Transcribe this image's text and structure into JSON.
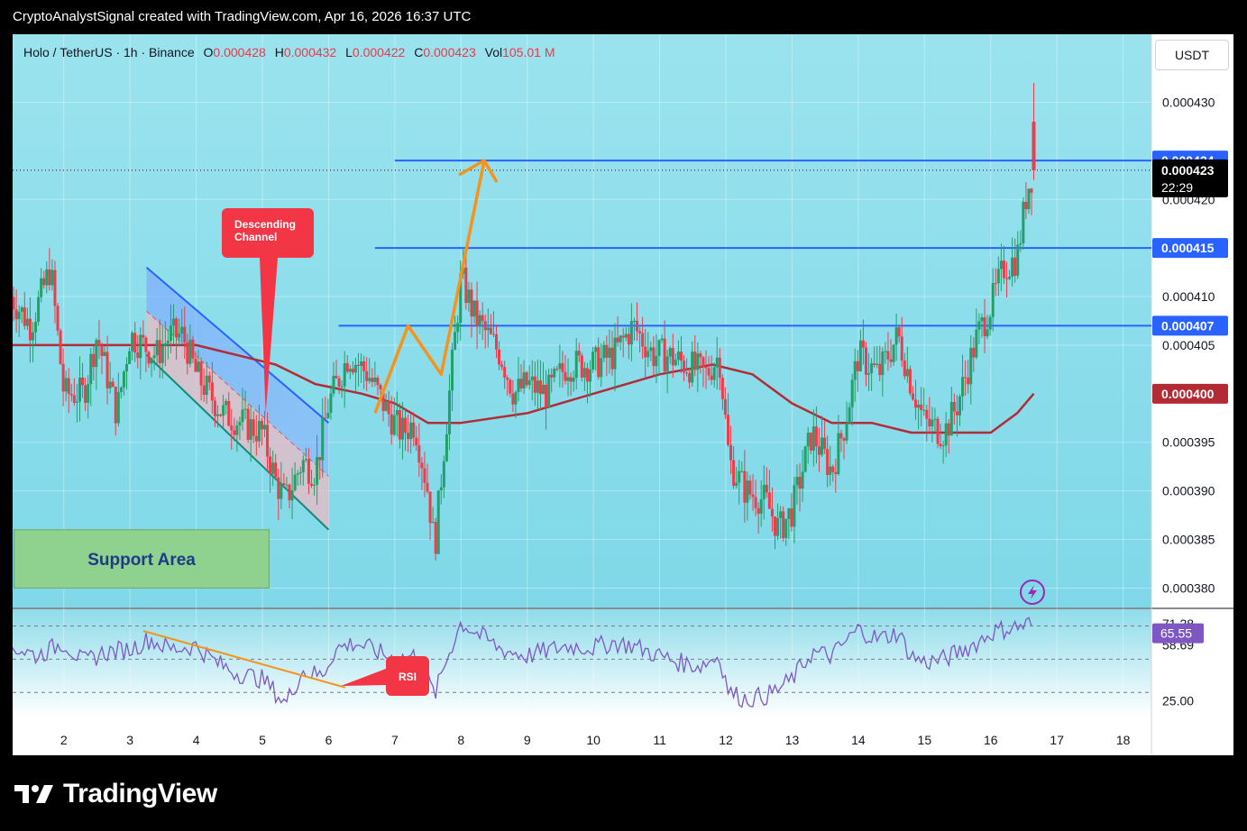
{
  "caption": "CryptoAnalystSignal created with TradingView.com, Apr 16, 2026 16:37 UTC",
  "header": {
    "symbol": "Holo / TetherUS · 1h · Binance",
    "o_label": "O",
    "o_value": "0.000428",
    "h_label": "H",
    "h_value": "0.000432",
    "l_label": "L",
    "l_value": "0.000422",
    "c_label": "C",
    "c_value": "0.000423",
    "vol_label": "Vol",
    "vol_value": "105.01 M"
  },
  "currency_button": "USDT",
  "brand": "TradingView",
  "colors": {
    "sky": "#8fdcea",
    "up": "#22a06b",
    "down": "#ef3b4a",
    "ma": "#b22b35",
    "hline": "#2962ff",
    "orange": "#f7931a",
    "rsi": "#7e57c2",
    "support_fill": "#8fd18f",
    "support_text": "#1e3a8a",
    "callout": "#f23645"
  },
  "chart_data": [
    {
      "type": "candlestick",
      "title": "Holo / TetherUS · 1h · Binance",
      "x_tick_labels": [
        "2",
        "3",
        "4",
        "5",
        "6",
        "7",
        "8",
        "9",
        "10",
        "11",
        "12",
        "13",
        "14",
        "15",
        "16",
        "17",
        "18"
      ],
      "y_tick_labels": [
        "0.000430",
        "0.000420",
        "0.000410",
        "0.000405",
        "0.000395",
        "0.000390",
        "0.000385",
        "0.000380"
      ],
      "ylim": [
        0.000378,
        0.000437
      ],
      "xlim": [
        1.2,
        18.4
      ],
      "close_series": [
        [
          1.2,
          0.00041
        ],
        [
          1.5,
          0.000407
        ],
        [
          1.8,
          0.000413
        ],
        [
          2.0,
          0.0004
        ],
        [
          2.3,
          0.0004
        ],
        [
          2.5,
          0.000406
        ],
        [
          2.8,
          0.000398
        ],
        [
          3.0,
          0.000406
        ],
        [
          3.2,
          0.000405
        ],
        [
          3.4,
          0.000404
        ],
        [
          3.6,
          0.000406
        ],
        [
          3.8,
          0.000406
        ],
        [
          4.0,
          0.000402
        ],
        [
          4.2,
          0.0004
        ],
        [
          4.4,
          0.000398
        ],
        [
          4.7,
          0.000397
        ],
        [
          5.0,
          0.000396
        ],
        [
          5.2,
          0.000391
        ],
        [
          5.35,
          0.000389
        ],
        [
          5.6,
          0.000393
        ],
        [
          5.8,
          0.000392
        ],
        [
          6.0,
          0.000399
        ],
        [
          6.3,
          0.000404
        ],
        [
          6.6,
          0.000402
        ],
        [
          6.9,
          0.000398
        ],
        [
          7.1,
          0.000396
        ],
        [
          7.3,
          0.000397
        ],
        [
          7.5,
          0.00039
        ],
        [
          7.6,
          0.000384
        ],
        [
          7.75,
          0.000395
        ],
        [
          8.0,
          0.000412
        ],
        [
          8.2,
          0.000408
        ],
        [
          8.4,
          0.000406
        ],
        [
          8.6,
          0.000404
        ],
        [
          8.8,
          0.0004
        ],
        [
          9.0,
          0.000401
        ],
        [
          9.3,
          0.0004
        ],
        [
          9.6,
          0.000403
        ],
        [
          10.0,
          0.000403
        ],
        [
          10.3,
          0.000404
        ],
        [
          10.6,
          0.000407
        ],
        [
          10.9,
          0.000404
        ],
        [
          11.1,
          0.000404
        ],
        [
          11.4,
          0.000403
        ],
        [
          11.7,
          0.000402
        ],
        [
          11.9,
          0.000404
        ],
        [
          12.05,
          0.000393
        ],
        [
          12.3,
          0.00039
        ],
        [
          12.6,
          0.000389
        ],
        [
          12.8,
          0.000386
        ],
        [
          13.0,
          0.000388
        ],
        [
          13.3,
          0.000396
        ],
        [
          13.6,
          0.000392
        ],
        [
          13.8,
          0.000397
        ],
        [
          14.0,
          0.000404
        ],
        [
          14.3,
          0.000402
        ],
        [
          14.6,
          0.000406
        ],
        [
          14.8,
          0.000401
        ],
        [
          15.0,
          0.000397
        ],
        [
          15.3,
          0.000396
        ],
        [
          15.5,
          0.000399
        ],
        [
          15.8,
          0.000406
        ],
        [
          16.0,
          0.000409
        ],
        [
          16.2,
          0.000413
        ],
        [
          16.4,
          0.000414
        ],
        [
          16.55,
          0.000421
        ],
        [
          16.65,
          0.000423
        ]
      ],
      "moving_average": [
        [
          1.2,
          0.000405
        ],
        [
          2.0,
          0.000405
        ],
        [
          3.0,
          0.000405
        ],
        [
          4.0,
          0.000405
        ],
        [
          4.6,
          0.000404
        ],
        [
          5.2,
          0.000403
        ],
        [
          5.8,
          0.000401
        ],
        [
          6.5,
          0.0004
        ],
        [
          7.0,
          0.000399
        ],
        [
          7.5,
          0.000397
        ],
        [
          8.0,
          0.000397
        ],
        [
          9.0,
          0.000398
        ],
        [
          10.0,
          0.0004
        ],
        [
          11.0,
          0.000402
        ],
        [
          11.8,
          0.000403
        ],
        [
          12.4,
          0.000402
        ],
        [
          13.0,
          0.000399
        ],
        [
          13.6,
          0.000397
        ],
        [
          14.2,
          0.000397
        ],
        [
          14.8,
          0.000396
        ],
        [
          15.5,
          0.000396
        ],
        [
          16.0,
          0.000396
        ],
        [
          16.4,
          0.000398
        ],
        [
          16.65,
          0.0004
        ]
      ],
      "horizontal_lines": [
        {
          "value": 0.000424,
          "label": "0.000424"
        },
        {
          "value": 0.000415,
          "label": "0.000415"
        },
        {
          "value": 0.000407,
          "label": "0.000407"
        }
      ],
      "price_tags": [
        {
          "label": "0.000424",
          "bg": "#2962ff"
        },
        {
          "label": "0.000415",
          "bg": "#2962ff"
        },
        {
          "label": "0.000407",
          "bg": "#2962ff"
        },
        {
          "label": "0.000400",
          "bg": "#b22b35"
        }
      ],
      "last_price": {
        "value": 0.000423,
        "label": "0.000423",
        "countdown": "22:29"
      },
      "annotations": {
        "descending_channel": "Descending Channel",
        "support_area": "Support Area",
        "rsi_callout": "RSI"
      },
      "support_area_range": {
        "x": [
          1.25,
          5.1
        ],
        "y": [
          0.00038,
          0.000386
        ]
      },
      "channel": {
        "upper": [
          [
            3.25,
            0.000413
          ],
          [
            6.0,
            0.000397
          ]
        ],
        "lower": [
          [
            3.25,
            0.000404
          ],
          [
            6.0,
            0.000386
          ]
        ]
      },
      "orange_path": [
        [
          6.7,
          0.000398
        ],
        [
          7.2,
          0.000407
        ],
        [
          7.7,
          0.000402
        ],
        [
          8.35,
          0.000424
        ]
      ]
    },
    {
      "type": "line",
      "title": "RSI",
      "y_tick_labels": [
        "71.28",
        "65.55",
        "58.69",
        "25.00"
      ],
      "ylim": [
        15,
        80
      ],
      "levels": [
        70,
        50,
        30
      ],
      "current_value": "65.55",
      "rsi_series": [
        [
          1.2,
          58
        ],
        [
          1.6,
          52
        ],
        [
          2.0,
          60
        ],
        [
          2.3,
          48
        ],
        [
          2.6,
          54
        ],
        [
          3.0,
          56
        ],
        [
          3.3,
          62
        ],
        [
          3.6,
          56
        ],
        [
          4.0,
          58
        ],
        [
          4.3,
          48
        ],
        [
          4.6,
          42
        ],
        [
          5.0,
          38
        ],
        [
          5.2,
          30
        ],
        [
          5.35,
          23
        ],
        [
          5.6,
          43
        ],
        [
          5.9,
          40
        ],
        [
          6.1,
          56
        ],
        [
          6.4,
          60
        ],
        [
          6.7,
          55
        ],
        [
          7.0,
          50
        ],
        [
          7.3,
          52
        ],
        [
          7.5,
          38
        ],
        [
          7.6,
          28
        ],
        [
          7.8,
          52
        ],
        [
          8.0,
          72
        ],
        [
          8.3,
          64
        ],
        [
          8.6,
          56
        ],
        [
          9.0,
          52
        ],
        [
          9.3,
          55
        ],
        [
          9.6,
          58
        ],
        [
          10.0,
          57
        ],
        [
          10.3,
          60
        ],
        [
          10.6,
          58
        ],
        [
          11.0,
          52
        ],
        [
          11.3,
          48
        ],
        [
          11.6,
          46
        ],
        [
          11.9,
          52
        ],
        [
          12.05,
          30
        ],
        [
          12.3,
          26
        ],
        [
          12.6,
          28
        ],
        [
          12.8,
          32
        ],
        [
          13.0,
          38
        ],
        [
          13.3,
          54
        ],
        [
          13.6,
          52
        ],
        [
          13.8,
          60
        ],
        [
          14.0,
          68
        ],
        [
          14.3,
          62
        ],
        [
          14.6,
          66
        ],
        [
          14.8,
          52
        ],
        [
          15.0,
          48
        ],
        [
          15.3,
          50
        ],
        [
          15.5,
          54
        ],
        [
          15.8,
          60
        ],
        [
          16.0,
          66
        ],
        [
          16.3,
          69
        ],
        [
          16.5,
          70
        ],
        [
          16.6,
          72
        ],
        [
          16.65,
          66
        ]
      ],
      "trendline": [
        [
          3.2,
          67
        ],
        [
          6.25,
          33
        ]
      ]
    }
  ]
}
